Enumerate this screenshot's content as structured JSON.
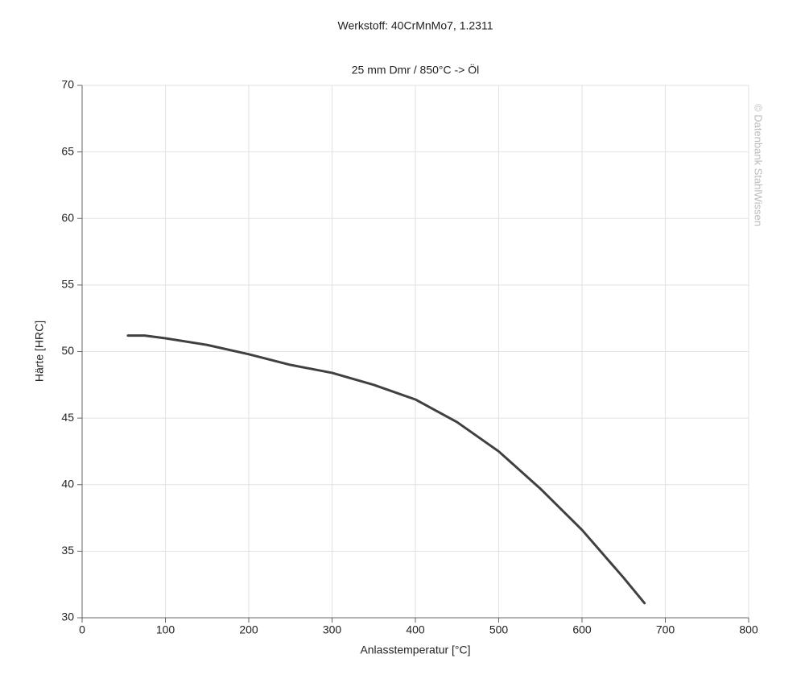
{
  "chart_data": {
    "type": "line",
    "title": "Werkstoff: 40CrMnMo7, 1.2311",
    "subtitle": "25 mm Dmr / 850°C -> Öl",
    "watermark": "© Datenbank StahlWissen",
    "x_label": "Anlasstemperatur [°C]",
    "y_label": "Härte [HRC]",
    "x": [
      55,
      75,
      100,
      150,
      200,
      250,
      300,
      350,
      400,
      450,
      500,
      550,
      600,
      650,
      675
    ],
    "series": [
      {
        "color": "#404040",
        "values": [
          51.2,
          51.2,
          51.0,
          50.5,
          49.8,
          49.0,
          48.4,
          47.5,
          46.4,
          44.7,
          42.5,
          39.7,
          36.6,
          33.0,
          31.1
        ]
      }
    ],
    "xlim": [
      0,
      800
    ],
    "xticks": [
      0,
      100,
      200,
      300,
      400,
      500,
      600,
      700,
      800
    ],
    "ylim": [
      30,
      70
    ],
    "yticks": [
      30,
      35,
      40,
      45,
      50,
      55,
      60,
      65,
      70
    ],
    "grid": true
  }
}
